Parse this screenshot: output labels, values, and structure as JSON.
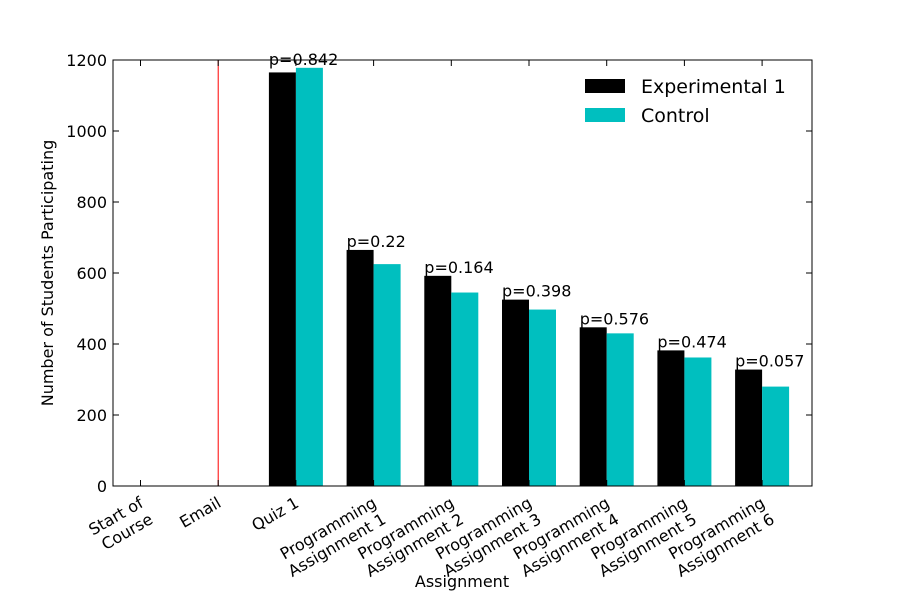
{
  "chart_data": {
    "type": "bar",
    "categories": [
      [
        "Start of",
        "Course"
      ],
      [
        "Email"
      ],
      [
        "Quiz 1"
      ],
      [
        "Programming",
        "Assignment 1"
      ],
      [
        "Programming",
        "Assignment 2"
      ],
      [
        "Programming",
        "Assignment 3"
      ],
      [
        "Programming",
        "Assignment 4"
      ],
      [
        "Programming",
        "Assignment 5"
      ],
      [
        "Programming",
        "Assignment 6"
      ]
    ],
    "series": [
      {
        "name": "Experimental 1",
        "color": "#000000",
        "values": [
          null,
          null,
          1165,
          665,
          592,
          525,
          447,
          382,
          328
        ]
      },
      {
        "name": "Control",
        "color": "#00bfbf",
        "values": [
          null,
          null,
          1178,
          625,
          545,
          497,
          430,
          362,
          280
        ]
      }
    ],
    "annotations": [
      null,
      null,
      "p=0.842",
      "p=0.22",
      "p=0.164",
      "p=0.398",
      "p=0.576",
      "p=0.474",
      "p=0.057"
    ],
    "vertical_line": {
      "category_index": 1,
      "color": "#ff0000"
    },
    "xlabel": "Assignment",
    "ylabel": "Number of Students Participating",
    "ylim": [
      0,
      1200
    ],
    "yticks": [
      0,
      200,
      400,
      600,
      800,
      1000,
      1200
    ],
    "grid": false,
    "legend_position": "top-right"
  }
}
